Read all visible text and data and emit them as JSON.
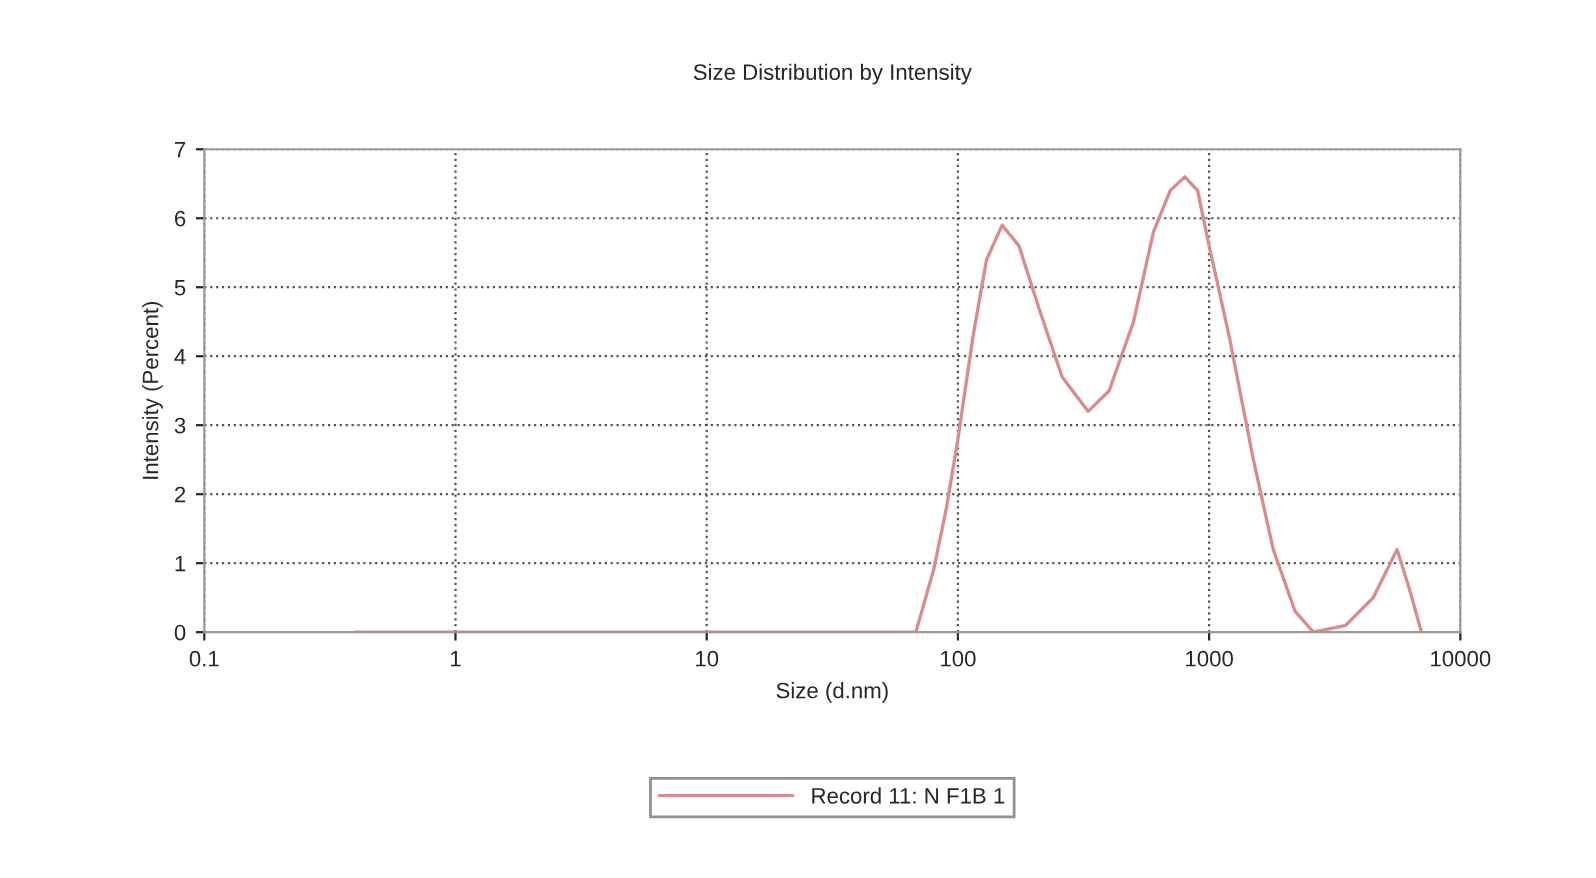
{
  "chart_data": {
    "type": "line",
    "title": "Size Distribution by Intensity",
    "xlabel": "Size (d.nm)",
    "ylabel": "Intensity (Percent)",
    "log": "x",
    "xlim": [
      0.1,
      10000
    ],
    "xticks": [
      0.1,
      1,
      10,
      100,
      1000,
      10000
    ],
    "ylim": [
      0,
      7
    ],
    "yticks": [
      0,
      1,
      2,
      3,
      4,
      5,
      6,
      7
    ],
    "grid": true,
    "legend": "bottom",
    "line_style": "solid",
    "series": [
      {
        "name": "Record 11: N F1B 1",
        "color": "#d98c8c",
        "x": [
          0.4,
          10,
          68,
          80,
          90,
          100,
          115,
          130,
          150,
          175,
          210,
          260,
          330,
          400,
          500,
          600,
          700,
          800,
          900,
          1000,
          1200,
          1500,
          1800,
          2200,
          2600,
          3500,
          4500,
          5600,
          6300,
          7000
        ],
        "values": [
          0,
          0,
          0,
          0.9,
          1.8,
          2.8,
          4.3,
          5.4,
          5.9,
          5.6,
          4.7,
          3.7,
          3.2,
          3.5,
          4.5,
          5.8,
          6.4,
          6.6,
          6.4,
          5.6,
          4.3,
          2.5,
          1.2,
          0.3,
          0,
          0.1,
          0.5,
          1.2,
          0.6,
          0
        ]
      }
    ]
  }
}
